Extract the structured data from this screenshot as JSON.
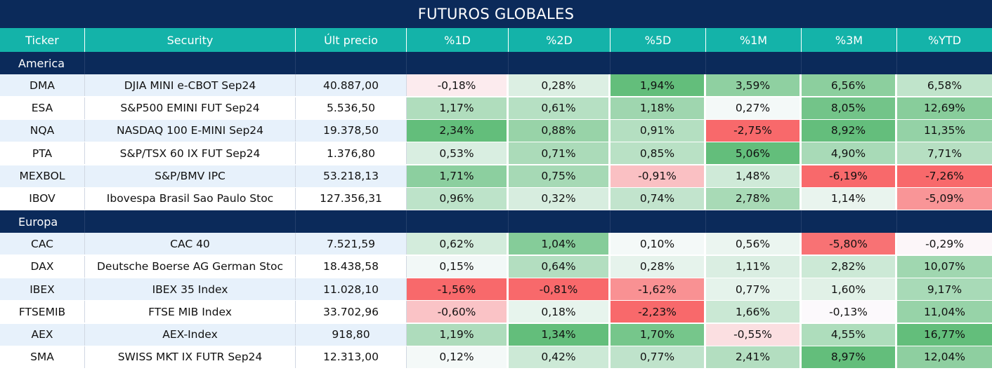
{
  "title": "FUTUROS GLOBALES",
  "headers": [
    "Ticker",
    "Security",
    "Últ precio",
    "%1D",
    "%2D",
    "%5D",
    "%1M",
    "%3M",
    "%YTD"
  ],
  "sections": [
    {
      "name": "America",
      "rows": [
        {
          "ticker": "DMA",
          "security": "DJIA MINI e-CBOT  Sep24",
          "price": "40.887,00",
          "changes": [
            "-0,18%",
            "0,28%",
            "1,94%",
            "3,59%",
            "6,56%",
            "6,58%"
          ]
        },
        {
          "ticker": "ESA",
          "security": "S&P500 EMINI FUT  Sep24",
          "price": "5.536,50",
          "changes": [
            "1,17%",
            "0,61%",
            "1,18%",
            "0,27%",
            "8,05%",
            "12,69%"
          ]
        },
        {
          "ticker": "NQA",
          "security": "NASDAQ 100 E-MINI Sep24",
          "price": "19.378,50",
          "changes": [
            "2,34%",
            "0,88%",
            "0,91%",
            "-2,75%",
            "8,92%",
            "11,35%"
          ]
        },
        {
          "ticker": "PTA",
          "security": "S&P/TSX 60 IX FUT Sep24",
          "price": "1.376,80",
          "changes": [
            "0,53%",
            "0,71%",
            "0,85%",
            "5,06%",
            "4,90%",
            "7,71%"
          ]
        },
        {
          "ticker": "MEXBOL",
          "security": "S&P/BMV IPC",
          "price": "53.218,13",
          "changes": [
            "1,71%",
            "0,75%",
            "-0,91%",
            "1,48%",
            "-6,19%",
            "-7,26%"
          ]
        },
        {
          "ticker": "IBOV",
          "security": "Ibovespa Brasil Sao Paulo Stoc",
          "price": "127.356,31",
          "changes": [
            "0,96%",
            "0,32%",
            "0,74%",
            "2,78%",
            "1,14%",
            "-5,09%"
          ]
        }
      ]
    },
    {
      "name": "Europa",
      "rows": [
        {
          "ticker": "CAC",
          "security": "CAC 40",
          "price": "7.521,59",
          "changes": [
            "0,62%",
            "1,04%",
            "0,10%",
            "0,56%",
            "-5,80%",
            "-0,29%"
          ]
        },
        {
          "ticker": "DAX",
          "security": "Deutsche Boerse AG German Stoc",
          "price": "18.438,58",
          "changes": [
            "0,15%",
            "0,64%",
            "0,28%",
            "1,11%",
            "2,82%",
            "10,07%"
          ]
        },
        {
          "ticker": "IBEX",
          "security": "IBEX 35 Index",
          "price": "11.028,10",
          "changes": [
            "-1,56%",
            "-0,81%",
            "-1,62%",
            "0,77%",
            "1,60%",
            "9,17%"
          ]
        },
        {
          "ticker": "FTSEMIB",
          "security": "FTSE MIB Index",
          "price": "33.702,96",
          "changes": [
            "-0,60%",
            "0,18%",
            "-2,23%",
            "1,66%",
            "-0,13%",
            "11,04%"
          ]
        },
        {
          "ticker": "AEX",
          "security": "AEX-Index",
          "price": "918,80",
          "changes": [
            "1,19%",
            "1,34%",
            "1,70%",
            "-0,55%",
            "4,55%",
            "16,77%"
          ]
        },
        {
          "ticker": "SMA",
          "security": "SWISS MKT IX FUTR Sep24",
          "price": "12.313,00",
          "changes": [
            "0,12%",
            "0,42%",
            "0,77%",
            "2,41%",
            "8,97%",
            "12,04%"
          ]
        }
      ]
    }
  ],
  "colors": {
    "title_bg": "#0b2a5a",
    "header_bg": "#14b3a9",
    "positive_strong": "#63be7b",
    "neutral": "#fcfcff",
    "negative_strong": "#f8696b",
    "stripe": "#e7f1fb"
  }
}
